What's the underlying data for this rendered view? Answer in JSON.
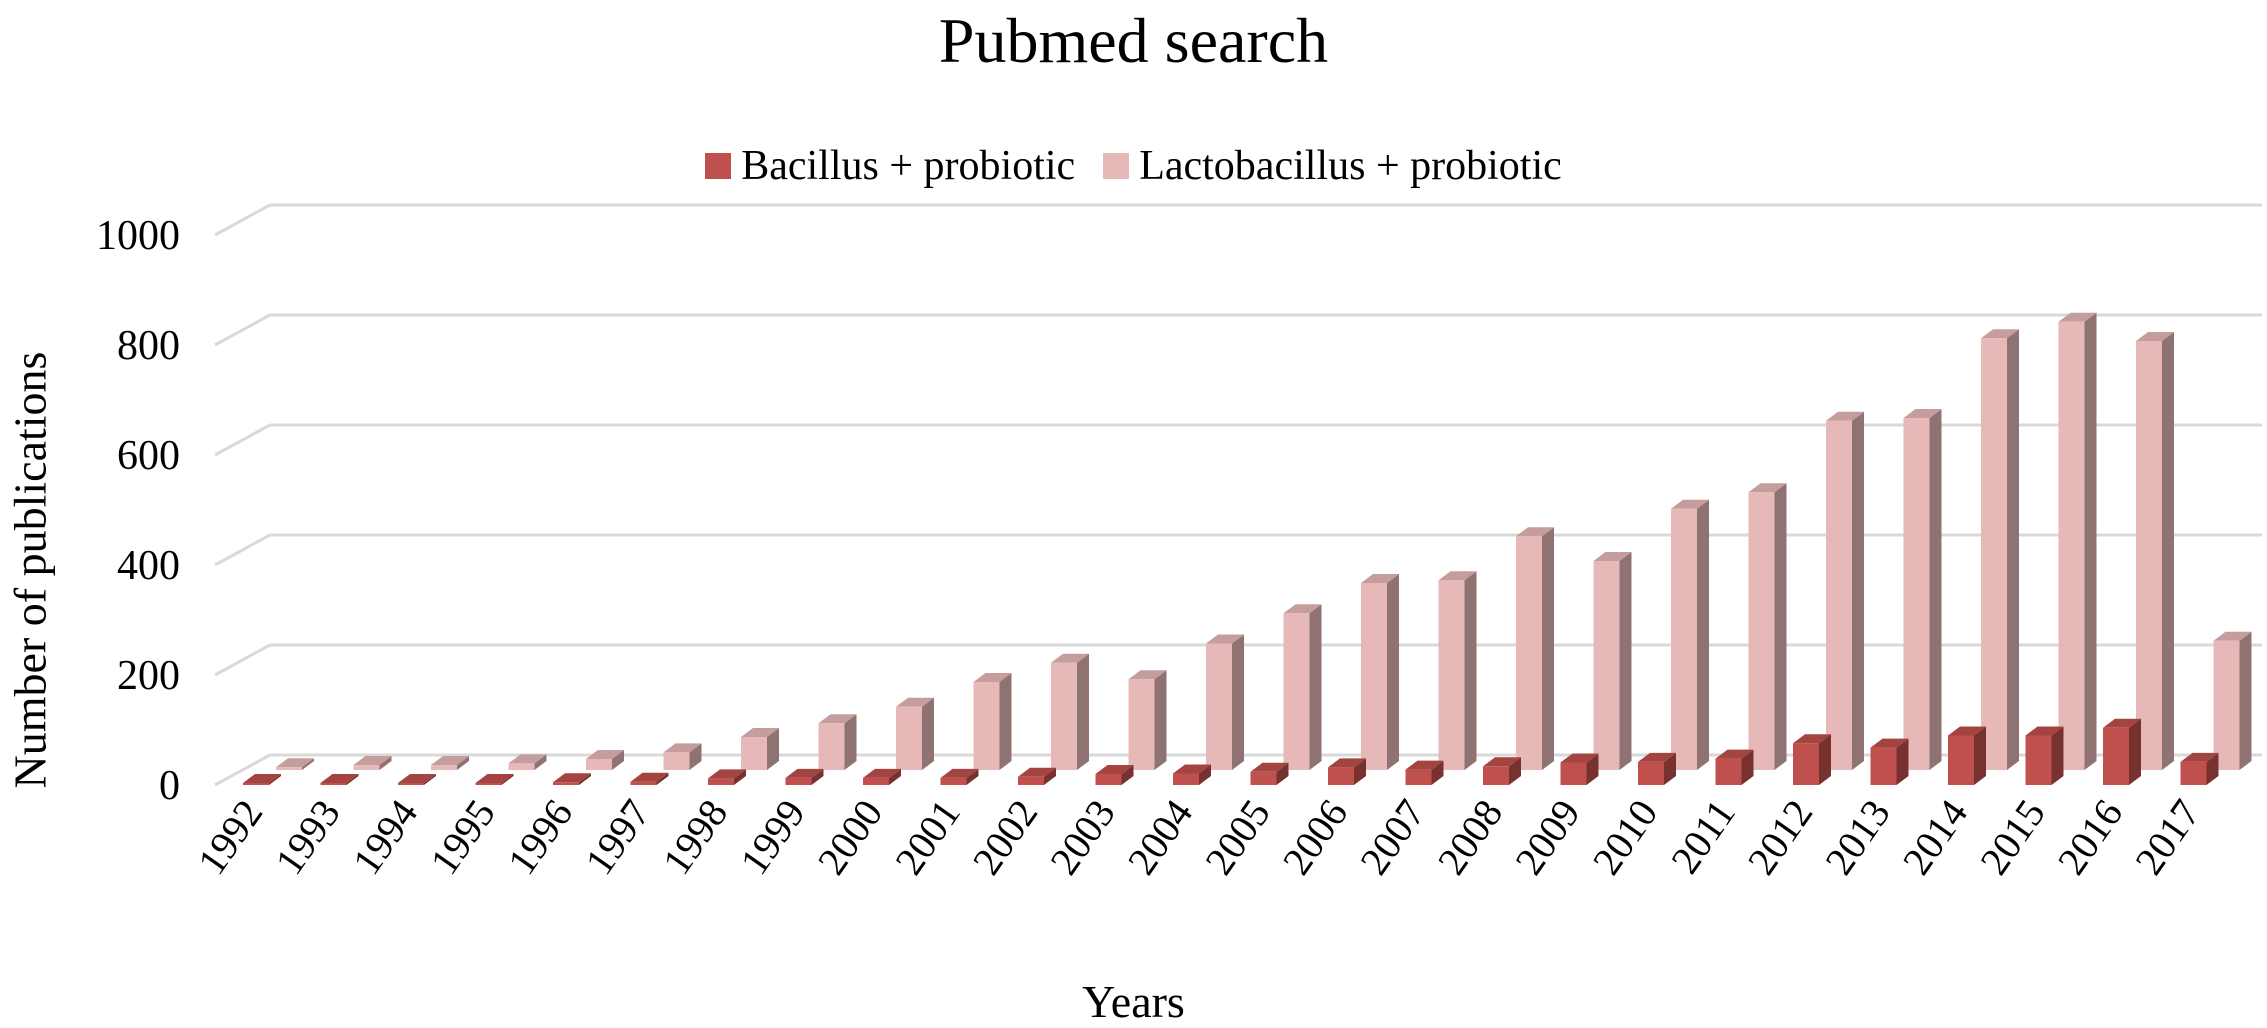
{
  "chart_data": {
    "type": "bar",
    "title": "Pubmed search",
    "xlabel": "Years",
    "ylabel": "Number of publications",
    "ylim": [
      0,
      1000
    ],
    "yticks": [
      0,
      200,
      400,
      600,
      800,
      1000
    ],
    "grid": true,
    "legend_position": "top",
    "categories": [
      "1992",
      "1993",
      "1994",
      "1995",
      "1996",
      "1997",
      "1998",
      "1999",
      "2000",
      "2001",
      "2002",
      "2003",
      "2004",
      "2005",
      "2006",
      "2007",
      "2008",
      "2009",
      "2010",
      "2011",
      "2012",
      "2013",
      "2014",
      "2015",
      "2016",
      "2017"
    ],
    "series": [
      {
        "name": "Bacillus + probiotic",
        "color": "#c0504d",
        "values": [
          1,
          2,
          2,
          3,
          5,
          6,
          12,
          13,
          13,
          13,
          15,
          20,
          21,
          24,
          32,
          28,
          34,
          41,
          42,
          48,
          76,
          68,
          90,
          90,
          104,
          42
        ]
      },
      {
        "name": "Lactobacillus + probiotic",
        "color": "#e6b9b8",
        "values": [
          5,
          9,
          9,
          12,
          20,
          32,
          60,
          85,
          115,
          160,
          195,
          165,
          230,
          285,
          340,
          345,
          425,
          380,
          475,
          505,
          635,
          640,
          785,
          815,
          780,
          235
        ]
      }
    ]
  }
}
